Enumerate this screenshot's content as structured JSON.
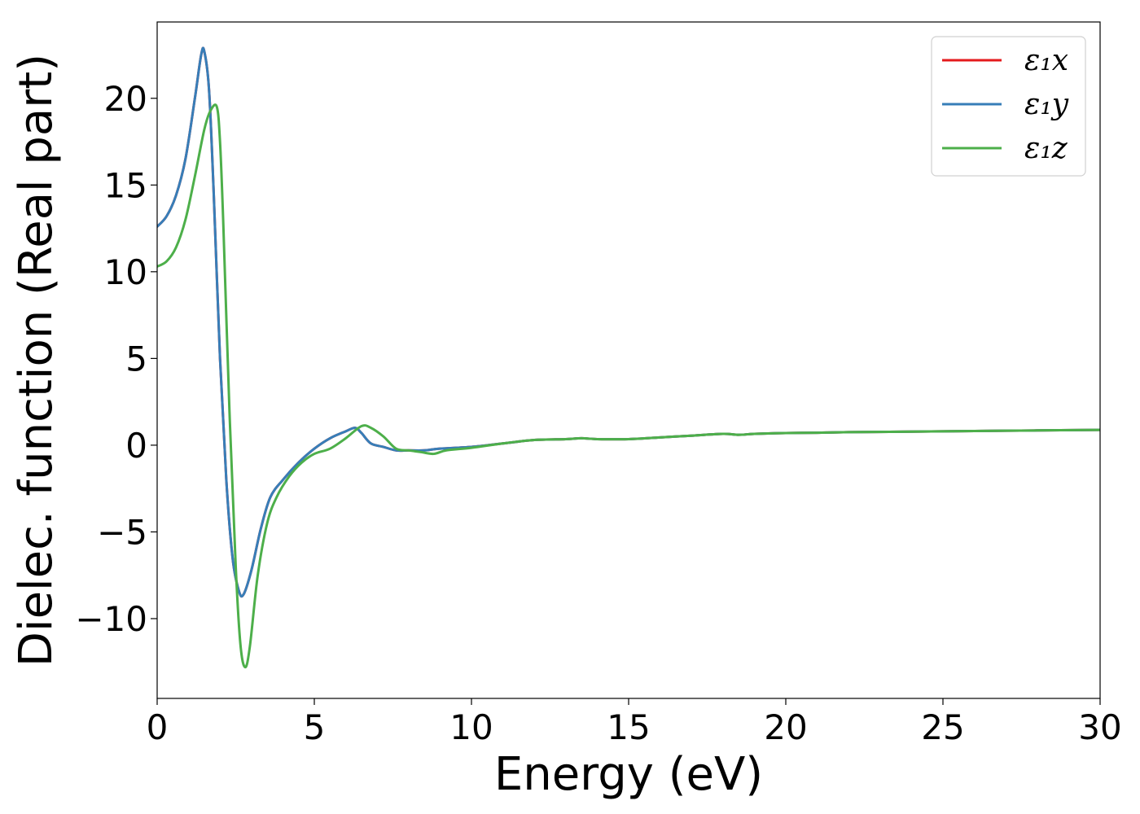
{
  "chart_data": {
    "type": "line",
    "xlabel": "Energy (eV)",
    "ylabel": "Dielec. function (Real part)",
    "xlim": [
      0,
      30
    ],
    "ylim": [
      -14.6,
      24.4
    ],
    "xticks": [
      0,
      5,
      10,
      15,
      20,
      25,
      30
    ],
    "yticks": [
      -10,
      -5,
      0,
      5,
      10,
      15,
      20
    ],
    "xtick_labels": [
      "0",
      "5",
      "10",
      "15",
      "20",
      "25",
      "30"
    ],
    "ytick_labels": [
      "−10",
      "−5",
      "0",
      "5",
      "10",
      "15",
      "20"
    ],
    "grid": false,
    "legend": {
      "position": "top-right"
    },
    "series": [
      {
        "name": "ε₁x",
        "color": "#e41a1c",
        "x": [
          0,
          0.3,
          0.6,
          0.9,
          1.2,
          1.4,
          1.5,
          1.65,
          1.8,
          2.0,
          2.2,
          2.4,
          2.6,
          2.75,
          3.0,
          3.3,
          3.6,
          4.0,
          4.5,
          5.0,
          5.5,
          6.0,
          6.3,
          6.5,
          6.8,
          7.2,
          7.6,
          8.0,
          8.5,
          9.0,
          10.0,
          11.0,
          12.0,
          13.0,
          13.5,
          14.0,
          15.0,
          16.0,
          17.0,
          18.0,
          18.5,
          19.0,
          20.0,
          21.0,
          22.0,
          24.0,
          26.0,
          28.0,
          30.0
        ],
        "values": [
          12.6,
          13.2,
          14.4,
          16.5,
          20.0,
          22.5,
          22.7,
          20.5,
          14.5,
          5.0,
          -2.0,
          -6.5,
          -8.4,
          -8.6,
          -7.2,
          -4.8,
          -3.0,
          -2.0,
          -1.0,
          -0.2,
          0.4,
          0.8,
          1.0,
          0.7,
          0.1,
          -0.1,
          -0.3,
          -0.3,
          -0.3,
          -0.2,
          -0.1,
          0.1,
          0.3,
          0.35,
          0.4,
          0.35,
          0.35,
          0.45,
          0.55,
          0.65,
          0.6,
          0.65,
          0.7,
          0.72,
          0.75,
          0.78,
          0.82,
          0.85,
          0.88
        ]
      },
      {
        "name": "ε₁y",
        "color": "#377eb8",
        "x": [
          0,
          0.3,
          0.6,
          0.9,
          1.2,
          1.4,
          1.5,
          1.65,
          1.8,
          2.0,
          2.2,
          2.4,
          2.6,
          2.75,
          3.0,
          3.3,
          3.6,
          4.0,
          4.5,
          5.0,
          5.5,
          6.0,
          6.3,
          6.5,
          6.8,
          7.2,
          7.6,
          8.0,
          8.5,
          9.0,
          10.0,
          11.0,
          12.0,
          13.0,
          13.5,
          14.0,
          15.0,
          16.0,
          17.0,
          18.0,
          18.5,
          19.0,
          20.0,
          21.0,
          22.0,
          24.0,
          26.0,
          28.0,
          30.0
        ],
        "values": [
          12.6,
          13.2,
          14.4,
          16.5,
          20.0,
          22.5,
          22.7,
          20.5,
          14.5,
          5.0,
          -2.0,
          -6.5,
          -8.4,
          -8.6,
          -7.2,
          -4.8,
          -3.0,
          -2.0,
          -1.0,
          -0.2,
          0.4,
          0.8,
          1.0,
          0.7,
          0.1,
          -0.1,
          -0.3,
          -0.3,
          -0.3,
          -0.2,
          -0.1,
          0.1,
          0.3,
          0.35,
          0.4,
          0.35,
          0.35,
          0.45,
          0.55,
          0.65,
          0.6,
          0.65,
          0.7,
          0.72,
          0.75,
          0.78,
          0.82,
          0.85,
          0.88
        ]
      },
      {
        "name": "ε₁z",
        "color": "#4daf4a",
        "x": [
          0,
          0.3,
          0.6,
          0.9,
          1.2,
          1.5,
          1.7,
          1.9,
          2.0,
          2.1,
          2.3,
          2.5,
          2.65,
          2.8,
          2.95,
          3.2,
          3.5,
          3.8,
          4.2,
          4.6,
          5.0,
          5.5,
          6.0,
          6.5,
          6.8,
          7.2,
          7.6,
          8.0,
          8.4,
          8.8,
          9.2,
          10.0,
          11.0,
          12.0,
          13.0,
          13.5,
          14.0,
          15.0,
          16.0,
          17.0,
          18.0,
          18.5,
          19.0,
          20.0,
          21.0,
          22.0,
          24.0,
          26.0,
          28.0,
          30.0
        ],
        "values": [
          10.3,
          10.6,
          11.4,
          13.0,
          15.5,
          18.2,
          19.3,
          19.5,
          17.5,
          13.0,
          2.0,
          -7.0,
          -11.5,
          -12.8,
          -11.6,
          -7.5,
          -4.5,
          -3.0,
          -1.8,
          -1.0,
          -0.5,
          -0.2,
          0.4,
          1.1,
          1.0,
          0.5,
          -0.2,
          -0.3,
          -0.4,
          -0.5,
          -0.3,
          -0.15,
          0.1,
          0.3,
          0.35,
          0.4,
          0.35,
          0.35,
          0.45,
          0.55,
          0.65,
          0.6,
          0.65,
          0.7,
          0.72,
          0.75,
          0.78,
          0.82,
          0.85,
          0.88
        ]
      }
    ]
  }
}
